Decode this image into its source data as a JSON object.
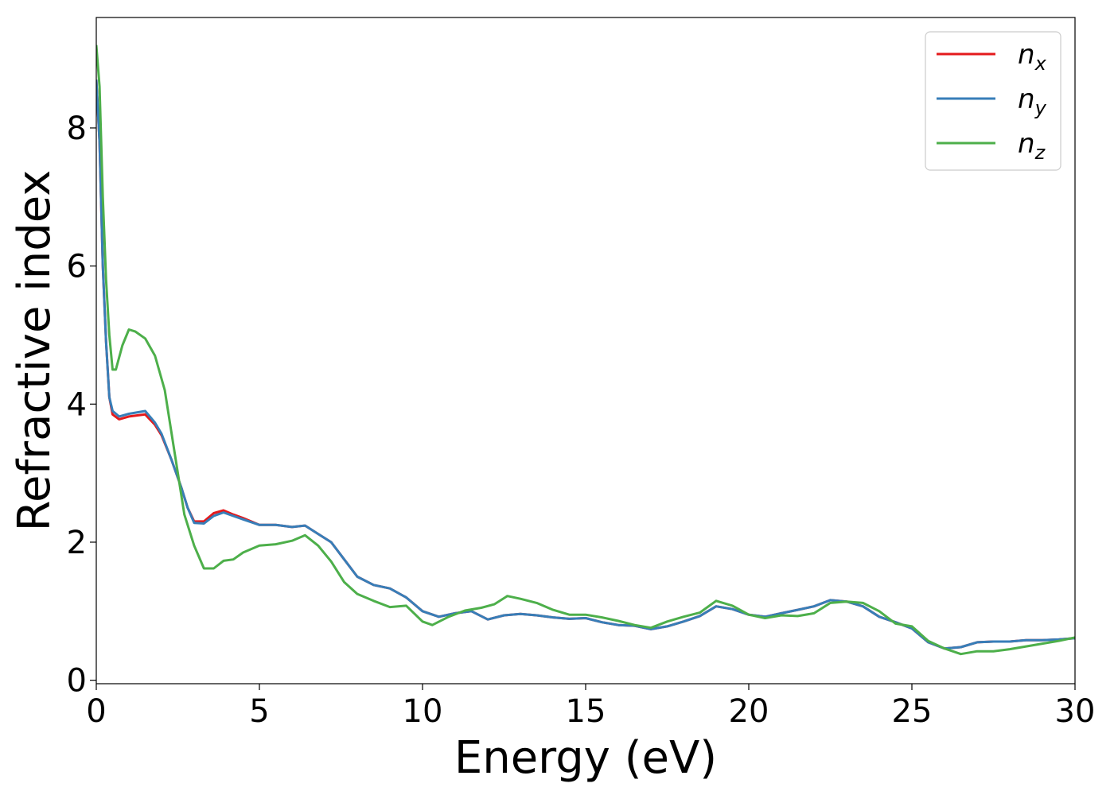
{
  "chart_data": {
    "type": "line",
    "xlabel": "Energy (eV)",
    "ylabel": "Refractive index",
    "xlim": [
      0,
      30
    ],
    "ylim": [
      -0.05,
      9.6
    ],
    "xticks": [
      0,
      5,
      10,
      15,
      20,
      25,
      30
    ],
    "yticks": [
      0,
      2,
      4,
      6,
      8
    ],
    "xtick_labels": [
      "0",
      "5",
      "10",
      "15",
      "20",
      "25",
      "30"
    ],
    "ytick_labels": [
      "0",
      "2",
      "4",
      "6",
      "8"
    ],
    "grid": false,
    "legend_placement": "top-right",
    "series": [
      {
        "name": "n_x",
        "label_base": "n",
        "label_sub": "x",
        "color": "#e41a1c",
        "x": [
          0,
          0.1,
          0.2,
          0.3,
          0.4,
          0.5,
          0.7,
          1.0,
          1.5,
          1.8,
          2.0,
          2.3,
          2.6,
          2.8,
          3.0,
          3.3,
          3.6,
          3.9,
          4.2,
          4.5,
          5.0,
          5.5,
          6.0,
          6.4,
          6.8,
          7.2,
          7.6,
          8.0,
          8.5,
          9.0,
          9.5,
          10.0,
          10.5,
          11.0,
          11.5,
          12.0,
          12.5,
          13.0,
          13.5,
          14.0,
          14.5,
          15.0,
          15.5,
          16.0,
          16.5,
          17.0,
          17.5,
          18.0,
          18.5,
          19.0,
          19.5,
          20.0,
          20.5,
          21.0,
          21.5,
          22.0,
          22.5,
          23.0,
          23.5,
          24.0,
          24.5,
          25.0,
          25.5,
          26.0,
          26.5,
          27.0,
          27.5,
          28.0,
          28.5,
          29.0,
          29.5,
          30.0
        ],
        "y": [
          8.7,
          7.8,
          6.0,
          4.9,
          4.1,
          3.85,
          3.78,
          3.82,
          3.85,
          3.7,
          3.55,
          3.2,
          2.8,
          2.5,
          2.3,
          2.3,
          2.42,
          2.46,
          2.4,
          2.35,
          2.25,
          2.25,
          2.22,
          2.24,
          2.12,
          2.0,
          1.75,
          1.5,
          1.38,
          1.33,
          1.2,
          1.0,
          0.92,
          0.97,
          1.0,
          0.88,
          0.94,
          0.96,
          0.94,
          0.91,
          0.89,
          0.9,
          0.84,
          0.8,
          0.79,
          0.74,
          0.78,
          0.85,
          0.93,
          1.07,
          1.03,
          0.95,
          0.92,
          0.97,
          1.02,
          1.07,
          1.16,
          1.14,
          1.07,
          0.92,
          0.84,
          0.75,
          0.55,
          0.46,
          0.48,
          0.55,
          0.56,
          0.56,
          0.58,
          0.58,
          0.59,
          0.61
        ]
      },
      {
        "name": "n_y",
        "label_base": "n",
        "label_sub": "y",
        "color": "#377eb8",
        "x": [
          0,
          0.1,
          0.2,
          0.3,
          0.4,
          0.5,
          0.7,
          1.0,
          1.5,
          1.8,
          2.0,
          2.3,
          2.6,
          2.8,
          3.0,
          3.3,
          3.6,
          3.9,
          4.2,
          4.5,
          5.0,
          5.5,
          6.0,
          6.4,
          6.8,
          7.2,
          7.6,
          8.0,
          8.5,
          9.0,
          9.5,
          10.0,
          10.5,
          11.0,
          11.5,
          12.0,
          12.5,
          13.0,
          13.5,
          14.0,
          14.5,
          15.0,
          15.5,
          16.0,
          16.5,
          17.0,
          17.5,
          18.0,
          18.5,
          19.0,
          19.5,
          20.0,
          20.5,
          21.0,
          21.5,
          22.0,
          22.5,
          23.0,
          23.5,
          24.0,
          24.5,
          25.0,
          25.5,
          26.0,
          26.5,
          27.0,
          27.5,
          28.0,
          28.5,
          29.0,
          29.5,
          30.0
        ],
        "y": [
          8.7,
          7.8,
          6.0,
          4.9,
          4.1,
          3.9,
          3.82,
          3.86,
          3.9,
          3.73,
          3.57,
          3.2,
          2.8,
          2.5,
          2.28,
          2.27,
          2.38,
          2.43,
          2.38,
          2.33,
          2.25,
          2.25,
          2.22,
          2.24,
          2.12,
          2.0,
          1.75,
          1.5,
          1.38,
          1.33,
          1.2,
          1.0,
          0.92,
          0.97,
          1.0,
          0.88,
          0.94,
          0.96,
          0.94,
          0.91,
          0.89,
          0.9,
          0.84,
          0.8,
          0.79,
          0.74,
          0.78,
          0.85,
          0.93,
          1.07,
          1.03,
          0.95,
          0.92,
          0.97,
          1.02,
          1.07,
          1.16,
          1.14,
          1.07,
          0.92,
          0.84,
          0.75,
          0.55,
          0.46,
          0.48,
          0.55,
          0.56,
          0.56,
          0.58,
          0.58,
          0.59,
          0.61
        ]
      },
      {
        "name": "n_z",
        "label_base": "n",
        "label_sub": "z",
        "color": "#4daf4a",
        "x": [
          0,
          0.1,
          0.2,
          0.3,
          0.4,
          0.5,
          0.6,
          0.8,
          1.0,
          1.2,
          1.5,
          1.8,
          2.1,
          2.4,
          2.7,
          3.0,
          3.3,
          3.6,
          3.9,
          4.2,
          4.5,
          5.0,
          5.5,
          6.0,
          6.4,
          6.8,
          7.2,
          7.6,
          8.0,
          8.5,
          9.0,
          9.5,
          10.0,
          10.3,
          10.8,
          11.3,
          11.8,
          12.2,
          12.6,
          13.0,
          13.5,
          14.0,
          14.5,
          15.0,
          15.5,
          16.0,
          16.5,
          17.0,
          17.5,
          18.0,
          18.5,
          19.0,
          19.5,
          20.0,
          20.5,
          21.0,
          21.5,
          22.0,
          22.5,
          23.0,
          23.5,
          24.0,
          24.5,
          25.0,
          25.5,
          26.0,
          26.5,
          27.0,
          27.5,
          28.0,
          28.5,
          29.0,
          29.5,
          30.0
        ],
        "y": [
          9.2,
          8.6,
          7.0,
          5.8,
          5.0,
          4.5,
          4.5,
          4.85,
          5.08,
          5.05,
          4.95,
          4.7,
          4.2,
          3.3,
          2.4,
          1.95,
          1.62,
          1.62,
          1.73,
          1.75,
          1.85,
          1.95,
          1.97,
          2.02,
          2.1,
          1.95,
          1.72,
          1.42,
          1.25,
          1.15,
          1.06,
          1.08,
          0.85,
          0.8,
          0.92,
          1.01,
          1.05,
          1.1,
          1.22,
          1.18,
          1.12,
          1.02,
          0.95,
          0.95,
          0.91,
          0.86,
          0.8,
          0.76,
          0.85,
          0.92,
          0.98,
          1.15,
          1.08,
          0.95,
          0.9,
          0.94,
          0.93,
          0.97,
          1.12,
          1.14,
          1.12,
          1.0,
          0.82,
          0.78,
          0.57,
          0.46,
          0.38,
          0.42,
          0.42,
          0.45,
          0.49,
          0.53,
          0.57,
          0.62
        ]
      }
    ]
  }
}
